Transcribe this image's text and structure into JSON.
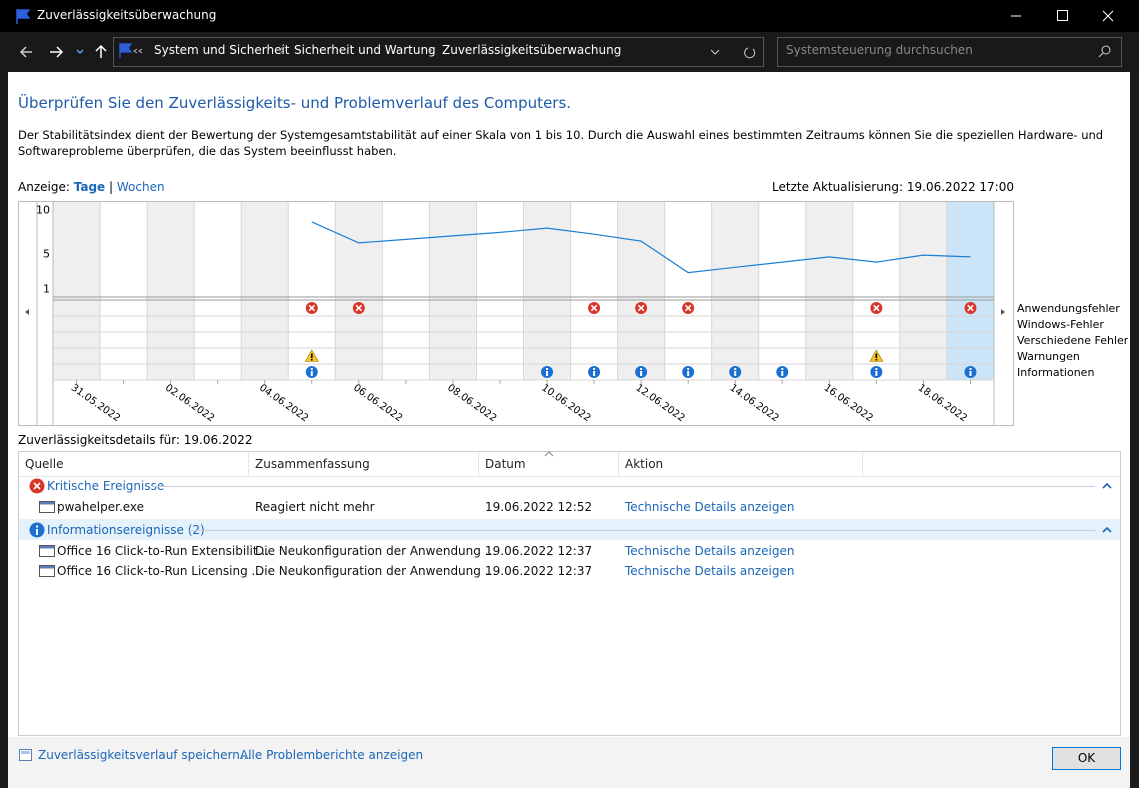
{
  "window": {
    "title": "Zuverlässigkeitsüberwachung"
  },
  "address_bar": {
    "breadcrumbs": [
      "System und Sicherheit",
      "Sicherheit und Wartung",
      "Zuverlässigkeitsüberwachung"
    ],
    "search_placeholder": "Systemsteuerung durchsuchen"
  },
  "heading": "Überprüfen Sie den Zuverlässigkeits- und Problemverlauf des Computers.",
  "description": "Der Stabilitätsindex dient der Bewertung der Systemgesamtstabilität auf einer Skala von 1 bis 10. Durch die Auswahl eines bestimmten Zeitraums können Sie die speziellen Hardware- und Softwareprobleme überprüfen, die das System beeinflusst haben.",
  "view": {
    "label": "Anzeige:",
    "options": [
      "Tage",
      "Wochen"
    ],
    "separator": "|"
  },
  "last_update": "Letzte Aktualisierung: 19.06.2022 17:00",
  "chart_data": {
    "type": "line",
    "categories": [
      "31.05.2022",
      null,
      "02.06.2022",
      null,
      "04.06.2022",
      null,
      "06.06.2022",
      null,
      "08.06.2022",
      null,
      "10.06.2022",
      null,
      "12.06.2022",
      null,
      "14.06.2022",
      null,
      "16.06.2022",
      null,
      "18.06.2022",
      null
    ],
    "ylim": [
      0,
      11
    ],
    "yticks": [
      1,
      5,
      10
    ],
    "series": [
      {
        "color": "#1a7fd4",
        "values": [
          null,
          null,
          null,
          null,
          null,
          8.6,
          6.2,
          6.6,
          7.0,
          7.4,
          7.9,
          7.2,
          6.4,
          2.8,
          3.4,
          4.0,
          4.6,
          4.0,
          4.8,
          4.6
        ]
      }
    ],
    "events": [
      {
        "name": "Anwendungsfehler",
        "values": [
          0,
          0,
          0,
          0,
          0,
          1,
          1,
          0,
          0,
          0,
          0,
          1,
          1,
          1,
          0,
          0,
          0,
          1,
          0,
          1
        ]
      },
      {
        "name": "Windows-Fehler",
        "values": [
          0,
          0,
          0,
          0,
          0,
          0,
          0,
          0,
          0,
          0,
          0,
          0,
          0,
          0,
          0,
          0,
          0,
          0,
          0,
          0
        ]
      },
      {
        "name": "Verschiedene Fehler",
        "values": [
          0,
          0,
          0,
          0,
          0,
          0,
          0,
          0,
          0,
          0,
          0,
          0,
          0,
          0,
          0,
          0,
          0,
          0,
          0,
          0
        ]
      },
      {
        "name": "Warnungen",
        "values": [
          0,
          0,
          0,
          0,
          0,
          1,
          0,
          0,
          0,
          0,
          0,
          0,
          0,
          0,
          0,
          0,
          0,
          1,
          0,
          0
        ]
      },
      {
        "name": "Informationen",
        "values": [
          0,
          0,
          0,
          0,
          0,
          1,
          0,
          0,
          0,
          0,
          1,
          1,
          1,
          1,
          1,
          1,
          0,
          1,
          0,
          1
        ]
      }
    ],
    "selected_index": 19
  },
  "details": {
    "title": "Zuverlässigkeitsdetails für: 19.06.2022",
    "columns": [
      "Quelle",
      "Zusammenfassung",
      "Datum",
      "Aktion"
    ],
    "groups": [
      {
        "title": "Kritische Ereignisse",
        "rows": [
          [
            "pwahelper.exe",
            "Reagiert nicht mehr",
            "19.06.2022 12:52",
            "Technische Details anzeigen"
          ]
        ]
      },
      {
        "title": "Informationsereignisse (2)",
        "rows": [
          [
            "Office 16 Click-to-Run Extensibilit...",
            "Die Neukonfiguration der Anwendung ...",
            "19.06.2022 12:37",
            "Technische Details anzeigen"
          ],
          [
            "Office 16 Click-to-Run Licensing ...",
            "Die Neukonfiguration der Anwendung ...",
            "19.06.2022 12:37",
            "Technische Details anzeigen"
          ]
        ]
      }
    ]
  },
  "footer": {
    "links": [
      "Zuverlässigkeitsverlauf speichern...",
      "Alle Problemberichte anzeigen"
    ],
    "button": "OK"
  }
}
